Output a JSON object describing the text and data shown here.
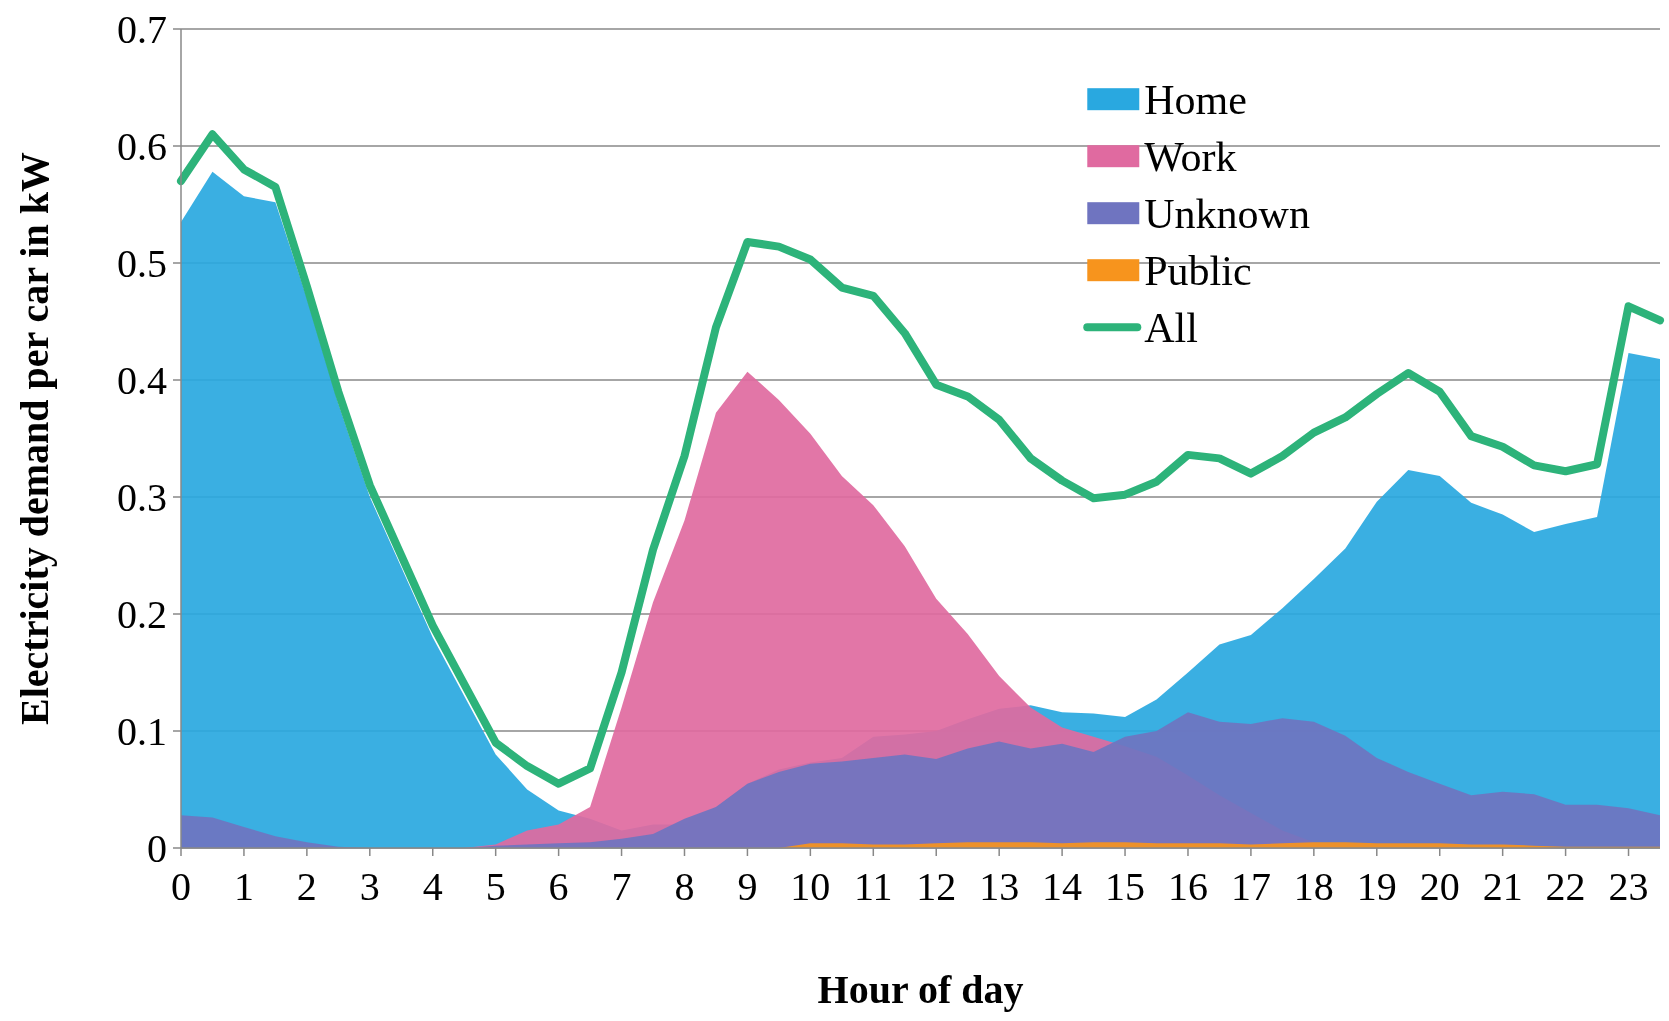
{
  "chart_data": {
    "type": "area",
    "xlabel": "Hour of day",
    "ylabel": "Electricity demand per car in kW",
    "x": [
      0,
      0.5,
      1,
      1.5,
      2,
      2.5,
      3,
      3.5,
      4,
      4.5,
      5,
      5.5,
      6,
      6.5,
      7,
      7.5,
      8,
      8.5,
      9,
      9.5,
      10,
      10.5,
      11,
      11.5,
      12,
      12.5,
      13,
      13.5,
      14,
      14.5,
      15,
      15.5,
      16,
      16.5,
      17,
      17.5,
      18,
      18.5,
      19,
      19.5,
      20,
      20.5,
      21,
      21.5,
      22,
      22.5,
      23,
      23.5
    ],
    "xlim": [
      0,
      23.5
    ],
    "xticks": [
      0,
      1,
      2,
      3,
      4,
      5,
      6,
      7,
      8,
      9,
      10,
      11,
      12,
      13,
      14,
      15,
      16,
      17,
      18,
      19,
      20,
      21,
      22,
      23
    ],
    "ylim": [
      0,
      0.7
    ],
    "yticks": [
      0,
      0.1,
      0.2,
      0.3,
      0.4,
      0.5,
      0.6,
      0.7
    ],
    "grid": "y",
    "legend": "top right",
    "series": [
      {
        "name": "Home",
        "color": "#29a8e0",
        "values": [
          0.535,
          0.578,
          0.557,
          0.552,
          0.47,
          0.38,
          0.3,
          0.24,
          0.18,
          0.13,
          0.08,
          0.05,
          0.032,
          0.025,
          0.015,
          0.02,
          0.02,
          0.035,
          0.055,
          0.067,
          0.073,
          0.077,
          0.095,
          0.097,
          0.1,
          0.11,
          0.119,
          0.122,
          0.116,
          0.115,
          0.112,
          0.127,
          0.15,
          0.174,
          0.182,
          0.205,
          0.23,
          0.256,
          0.296,
          0.323,
          0.318,
          0.295,
          0.285,
          0.27,
          0.277,
          0.283,
          0.423,
          0.418
        ]
      },
      {
        "name": "Work",
        "color": "#e06aa0",
        "values": [
          0,
          0,
          0,
          0,
          0,
          0,
          0,
          0,
          0,
          0,
          0.003,
          0.015,
          0.02,
          0.035,
          0.12,
          0.21,
          0.28,
          0.372,
          0.407,
          0.383,
          0.354,
          0.318,
          0.293,
          0.258,
          0.213,
          0.183,
          0.147,
          0.12,
          0.103,
          0.095,
          0.087,
          0.078,
          0.062,
          0.045,
          0.03,
          0.015,
          0.005,
          0,
          0,
          0,
          0,
          0,
          0,
          0,
          0,
          0,
          0,
          0
        ]
      },
      {
        "name": "Unknown",
        "color": "#6f74c0",
        "values": [
          0.028,
          0.026,
          0.018,
          0.01,
          0.005,
          0.001,
          0,
          0,
          0,
          0,
          0.002,
          0.003,
          0.004,
          0.005,
          0.008,
          0.012,
          0.025,
          0.035,
          0.055,
          0.065,
          0.072,
          0.074,
          0.077,
          0.08,
          0.076,
          0.085,
          0.091,
          0.085,
          0.089,
          0.082,
          0.095,
          0.1,
          0.116,
          0.108,
          0.106,
          0.111,
          0.108,
          0.096,
          0.077,
          0.065,
          0.055,
          0.045,
          0.048,
          0.046,
          0.037,
          0.037,
          0.034,
          0.028
        ]
      },
      {
        "name": "Public",
        "color": "#f7941d",
        "values": [
          0,
          0,
          0,
          0,
          0,
          0,
          0,
          0,
          0,
          0,
          0,
          0,
          0,
          0,
          0,
          0,
          0,
          0,
          0,
          0,
          0.004,
          0.004,
          0.003,
          0.003,
          0.004,
          0.005,
          0.005,
          0.005,
          0.004,
          0.005,
          0.005,
          0.004,
          0.004,
          0.004,
          0.003,
          0.004,
          0.005,
          0.005,
          0.004,
          0.004,
          0.004,
          0.003,
          0.003,
          0.002,
          0.001,
          0.001,
          0.001,
          0.001
        ]
      },
      {
        "name": "All",
        "type": "line",
        "color": "#2db37a",
        "values": [
          0.57,
          0.61,
          0.58,
          0.565,
          0.48,
          0.39,
          0.31,
          0.25,
          0.19,
          0.14,
          0.09,
          0.07,
          0.055,
          0.068,
          0.15,
          0.255,
          0.335,
          0.445,
          0.518,
          0.514,
          0.503,
          0.479,
          0.472,
          0.44,
          0.396,
          0.386,
          0.366,
          0.333,
          0.314,
          0.299,
          0.302,
          0.313,
          0.336,
          0.333,
          0.32,
          0.335,
          0.355,
          0.368,
          0.388,
          0.406,
          0.39,
          0.352,
          0.343,
          0.327,
          0.322,
          0.328,
          0.463,
          0.451
        ]
      }
    ]
  }
}
